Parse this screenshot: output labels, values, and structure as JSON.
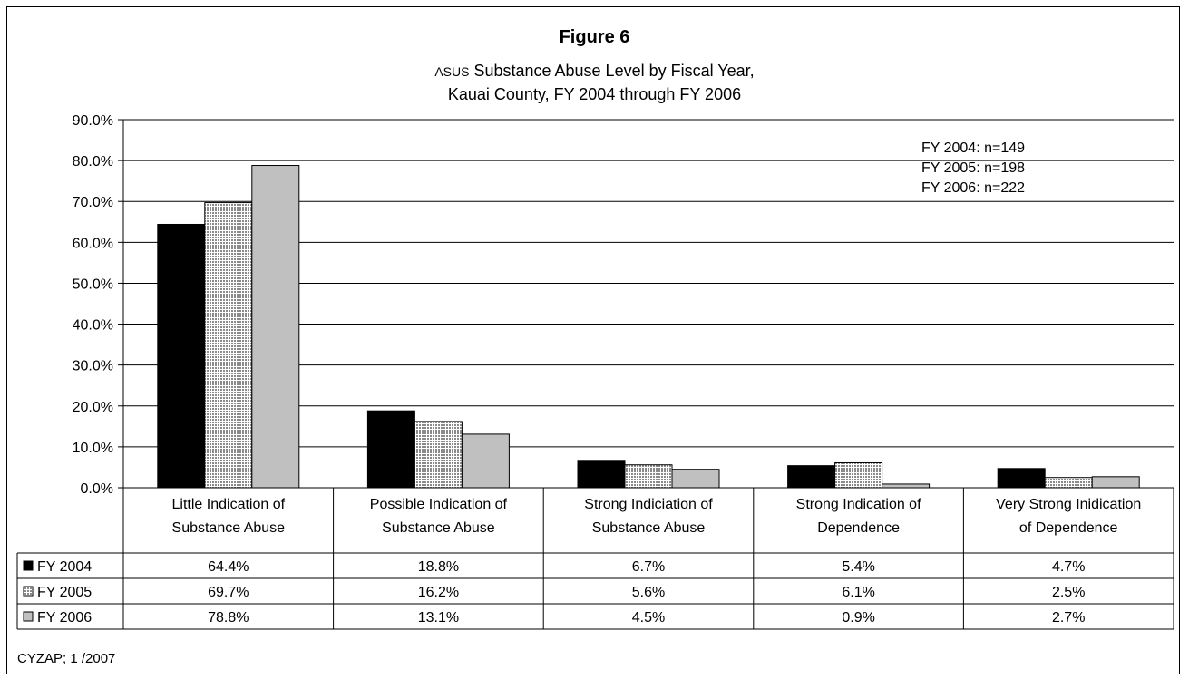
{
  "title": "Figure 6",
  "subtitle_prefix": "ASUS",
  "subtitle_line1": " Substance Abuse Level by Fiscal Year,",
  "subtitle_line2": "Kauai County, FY 2004 through FY 2006",
  "footer": "CYZAP; 1 /2007",
  "sample_sizes": [
    "FY 2004: n=149",
    "FY 2005: n=198",
    "FY 2006: n=222"
  ],
  "chart_data": {
    "type": "bar",
    "categories": [
      [
        "Little Indication of",
        "Substance Abuse"
      ],
      [
        "Possible Indication of",
        "Substance Abuse"
      ],
      [
        "Strong Indiciation of",
        "Substance Abuse"
      ],
      [
        "Strong Indication of",
        "Dependence"
      ],
      [
        "Very Strong Inidication",
        "of Dependence"
      ]
    ],
    "series": [
      {
        "name": "FY 2004",
        "values": [
          64.4,
          18.8,
          6.7,
          5.4,
          4.7
        ],
        "labels": [
          "64.4%",
          "18.8%",
          "6.7%",
          "5.4%",
          "4.7%"
        ],
        "color": "#000000",
        "pattern": "solid"
      },
      {
        "name": "FY 2005",
        "values": [
          69.7,
          16.2,
          5.6,
          6.1,
          2.5
        ],
        "labels": [
          "69.7%",
          "16.2%",
          "5.6%",
          "6.1%",
          "2.5%"
        ],
        "color": "#d9d9d9",
        "pattern": "dotted"
      },
      {
        "name": "FY 2006",
        "values": [
          78.8,
          13.1,
          4.5,
          0.9,
          2.7
        ],
        "labels": [
          "78.8%",
          "13.1%",
          "4.5%",
          "0.9%",
          "2.7%"
        ],
        "color": "#c0c0c0",
        "pattern": "solid"
      }
    ],
    "ylim": [
      0,
      90
    ],
    "yticks": [
      "0.0%",
      "10.0%",
      "20.0%",
      "30.0%",
      "40.0%",
      "50.0%",
      "60.0%",
      "70.0%",
      "80.0%",
      "90.0%"
    ],
    "grid": true,
    "legend": "data-table"
  }
}
